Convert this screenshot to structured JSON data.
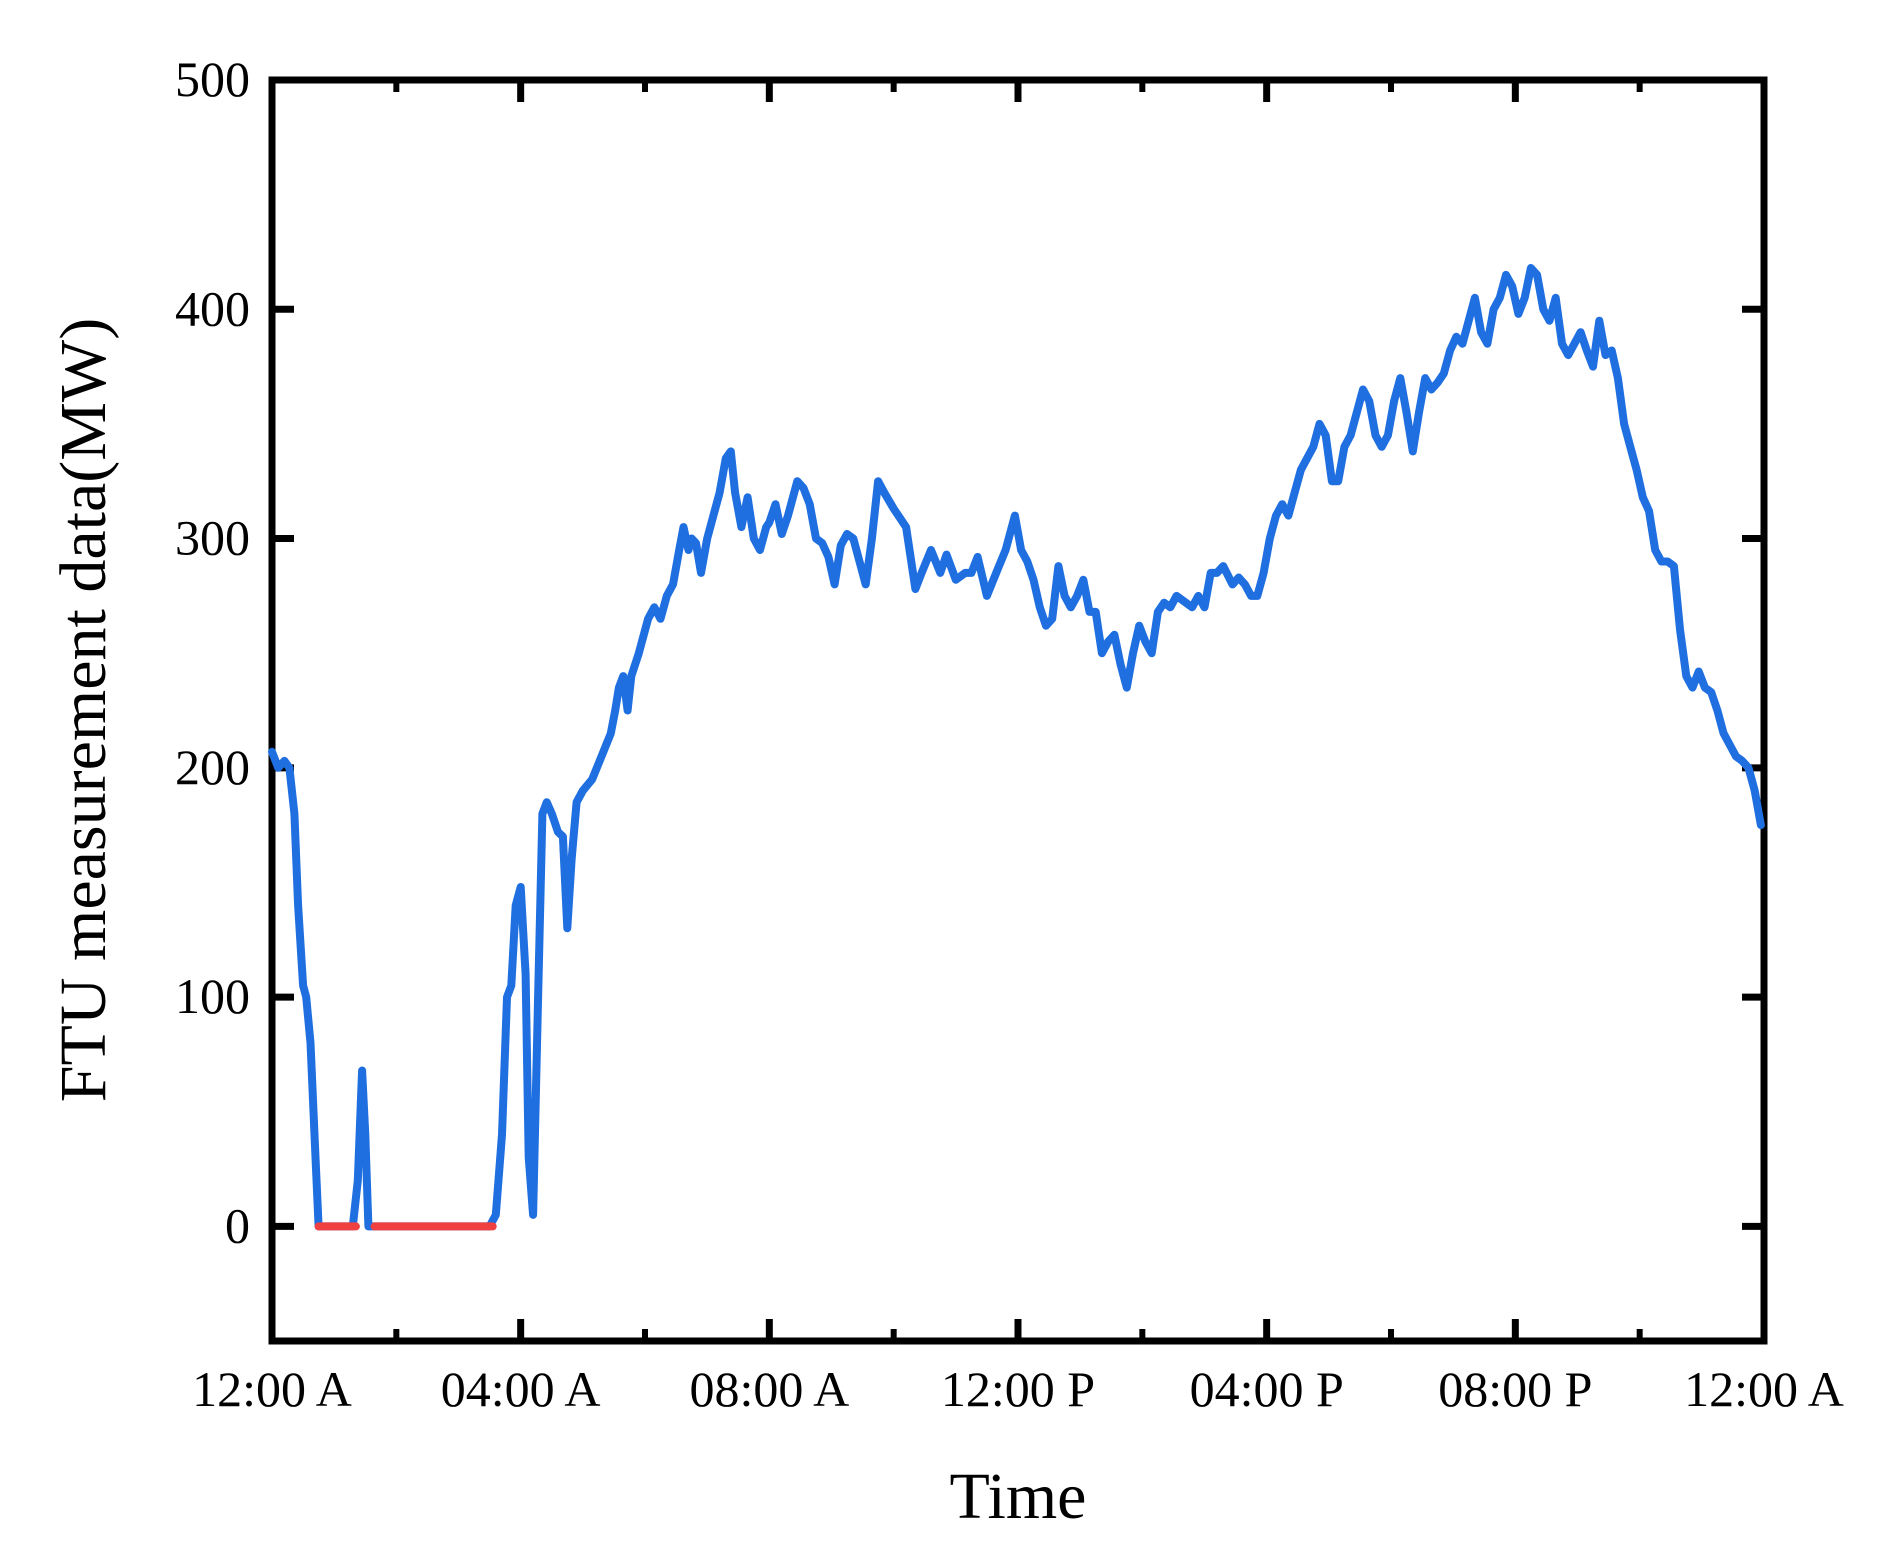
{
  "chart_data": {
    "type": "line",
    "title": "",
    "xlabel": "Time",
    "ylabel": "FTU measurement data(MW)",
    "xlim": [
      0,
      24
    ],
    "ylim": [
      -50,
      500
    ],
    "yticks": [
      0,
      100,
      200,
      300,
      400,
      500
    ],
    "xticks": [
      {
        "value": 0,
        "label": "12:00 A"
      },
      {
        "value": 4,
        "label": "04:00 A"
      },
      {
        "value": 8,
        "label": "08:00 A"
      },
      {
        "value": 12,
        "label": "12:00 P"
      },
      {
        "value": 16,
        "label": "04:00 P"
      },
      {
        "value": 20,
        "label": "08:00 P"
      },
      {
        "value": 24,
        "label": "12:00 A"
      }
    ],
    "minor_xticks": [
      2,
      6,
      10,
      14,
      18,
      22
    ],
    "minor_yticks": [],
    "grid": false,
    "legend": "none",
    "x_unit": "hours since 12:00 A",
    "series": [
      {
        "color": "#1f6fe0",
        "x": [
          0.0,
          0.1,
          0.2,
          0.28,
          0.36,
          0.42,
          0.5,
          0.55,
          0.62,
          0.7,
          0.75,
          1.3,
          1.38,
          1.45,
          1.5,
          1.55,
          3.5,
          3.6,
          3.7,
          3.78,
          3.85,
          3.92,
          4.0,
          4.08,
          4.13,
          4.2,
          4.28,
          4.35,
          4.42,
          4.5,
          4.6,
          4.68,
          4.75,
          4.82,
          4.9,
          5.0,
          5.15,
          5.3,
          5.45,
          5.52,
          5.58,
          5.65,
          5.72,
          5.78,
          5.9,
          6.05,
          6.15,
          6.25,
          6.35,
          6.45,
          6.55,
          6.62,
          6.7,
          6.75,
          6.82,
          6.9,
          7.0,
          7.1,
          7.2,
          7.3,
          7.38,
          7.45,
          7.55,
          7.65,
          7.75,
          7.85,
          7.95,
          8.0,
          8.1,
          8.2,
          8.3,
          8.45,
          8.55,
          8.65,
          8.75,
          8.85,
          8.95,
          9.05,
          9.15,
          9.25,
          9.35,
          9.45,
          9.55,
          9.65,
          9.75,
          9.85,
          10.0,
          10.2,
          10.35,
          10.45,
          10.6,
          10.75,
          10.85,
          11.0,
          11.15,
          11.25,
          11.35,
          11.5,
          11.65,
          11.8,
          11.95,
          12.05,
          12.15,
          12.25,
          12.35,
          12.45,
          12.55,
          12.65,
          12.75,
          12.85,
          12.95,
          13.05,
          13.15,
          13.25,
          13.35,
          13.45,
          13.55,
          13.65,
          13.75,
          13.85,
          13.95,
          14.05,
          14.15,
          14.25,
          14.35,
          14.45,
          14.55,
          14.65,
          14.8,
          14.9,
          15.0,
          15.1,
          15.2,
          15.3,
          15.45,
          15.55,
          15.65,
          15.75,
          15.85,
          15.95,
          16.05,
          16.15,
          16.25,
          16.35,
          16.45,
          16.55,
          16.65,
          16.75,
          16.85,
          16.95,
          17.05,
          17.15,
          17.25,
          17.35,
          17.45,
          17.55,
          17.65,
          17.75,
          17.85,
          17.95,
          18.05,
          18.15,
          18.25,
          18.35,
          18.45,
          18.55,
          18.65,
          18.75,
          18.85,
          18.95,
          19.05,
          19.15,
          19.25,
          19.35,
          19.45,
          19.55,
          19.65,
          19.75,
          19.85,
          19.95,
          20.05,
          20.15,
          20.25,
          20.35,
          20.45,
          20.55,
          20.65,
          20.75,
          20.85,
          20.95,
          21.05,
          21.15,
          21.25,
          21.35,
          21.45,
          21.55,
          21.65,
          21.75,
          21.85,
          21.95,
          22.05,
          22.15,
          22.25,
          22.35,
          22.45,
          22.55,
          22.65,
          22.75,
          22.85,
          22.95,
          23.05,
          23.15,
          23.25,
          23.35,
          23.45,
          23.55,
          23.65,
          23.75,
          23.85,
          23.95
        ],
        "y": [
          207,
          200,
          203,
          200,
          180,
          140,
          105,
          100,
          80,
          30,
          0,
          0,
          20,
          68,
          40,
          0,
          0,
          5,
          40,
          100,
          105,
          140,
          148,
          110,
          30,
          5,
          100,
          180,
          185,
          180,
          172,
          170,
          130,
          160,
          185,
          190,
          195,
          205,
          215,
          225,
          235,
          240,
          225,
          240,
          250,
          265,
          270,
          265,
          275,
          280,
          295,
          305,
          295,
          300,
          298,
          285,
          300,
          310,
          320,
          335,
          338,
          320,
          305,
          318,
          300,
          295,
          305,
          307,
          315,
          302,
          310,
          325,
          322,
          315,
          300,
          298,
          292,
          280,
          297,
          302,
          300,
          290,
          280,
          300,
          325,
          320,
          313,
          305,
          278,
          285,
          295,
          285,
          293,
          282,
          285,
          285,
          292,
          275,
          285,
          295,
          310,
          295,
          290,
          282,
          270,
          262,
          265,
          288,
          275,
          270,
          275,
          282,
          268,
          268,
          250,
          255,
          258,
          245,
          235,
          250,
          262,
          255,
          250,
          268,
          272,
          270,
          275,
          273,
          270,
          275,
          270,
          285,
          285,
          288,
          280,
          283,
          280,
          275,
          275,
          285,
          300,
          310,
          315,
          310,
          320,
          330,
          335,
          340,
          350,
          345,
          325,
          325,
          340,
          345,
          355,
          365,
          360,
          345,
          340,
          345,
          360,
          370,
          355,
          338,
          355,
          370,
          365,
          368,
          372,
          382,
          388,
          385,
          395,
          405,
          390,
          385,
          400,
          405,
          415,
          410,
          398,
          405,
          418,
          415,
          400,
          395,
          405,
          385,
          380,
          385,
          390,
          382,
          375,
          395,
          380,
          382,
          370,
          350,
          340,
          330,
          318,
          312,
          295,
          290,
          290,
          288,
          260,
          240,
          235,
          242,
          235,
          233,
          225,
          215,
          210,
          205,
          203,
          200,
          190,
          175
        ]
      },
      {
        "color": "#f04040",
        "x": [
          0.75,
          1.35
        ],
        "y": [
          0,
          0
        ]
      },
      {
        "color": "#f04040",
        "x": [
          1.65,
          3.55
        ],
        "y": [
          0,
          0
        ]
      }
    ]
  }
}
